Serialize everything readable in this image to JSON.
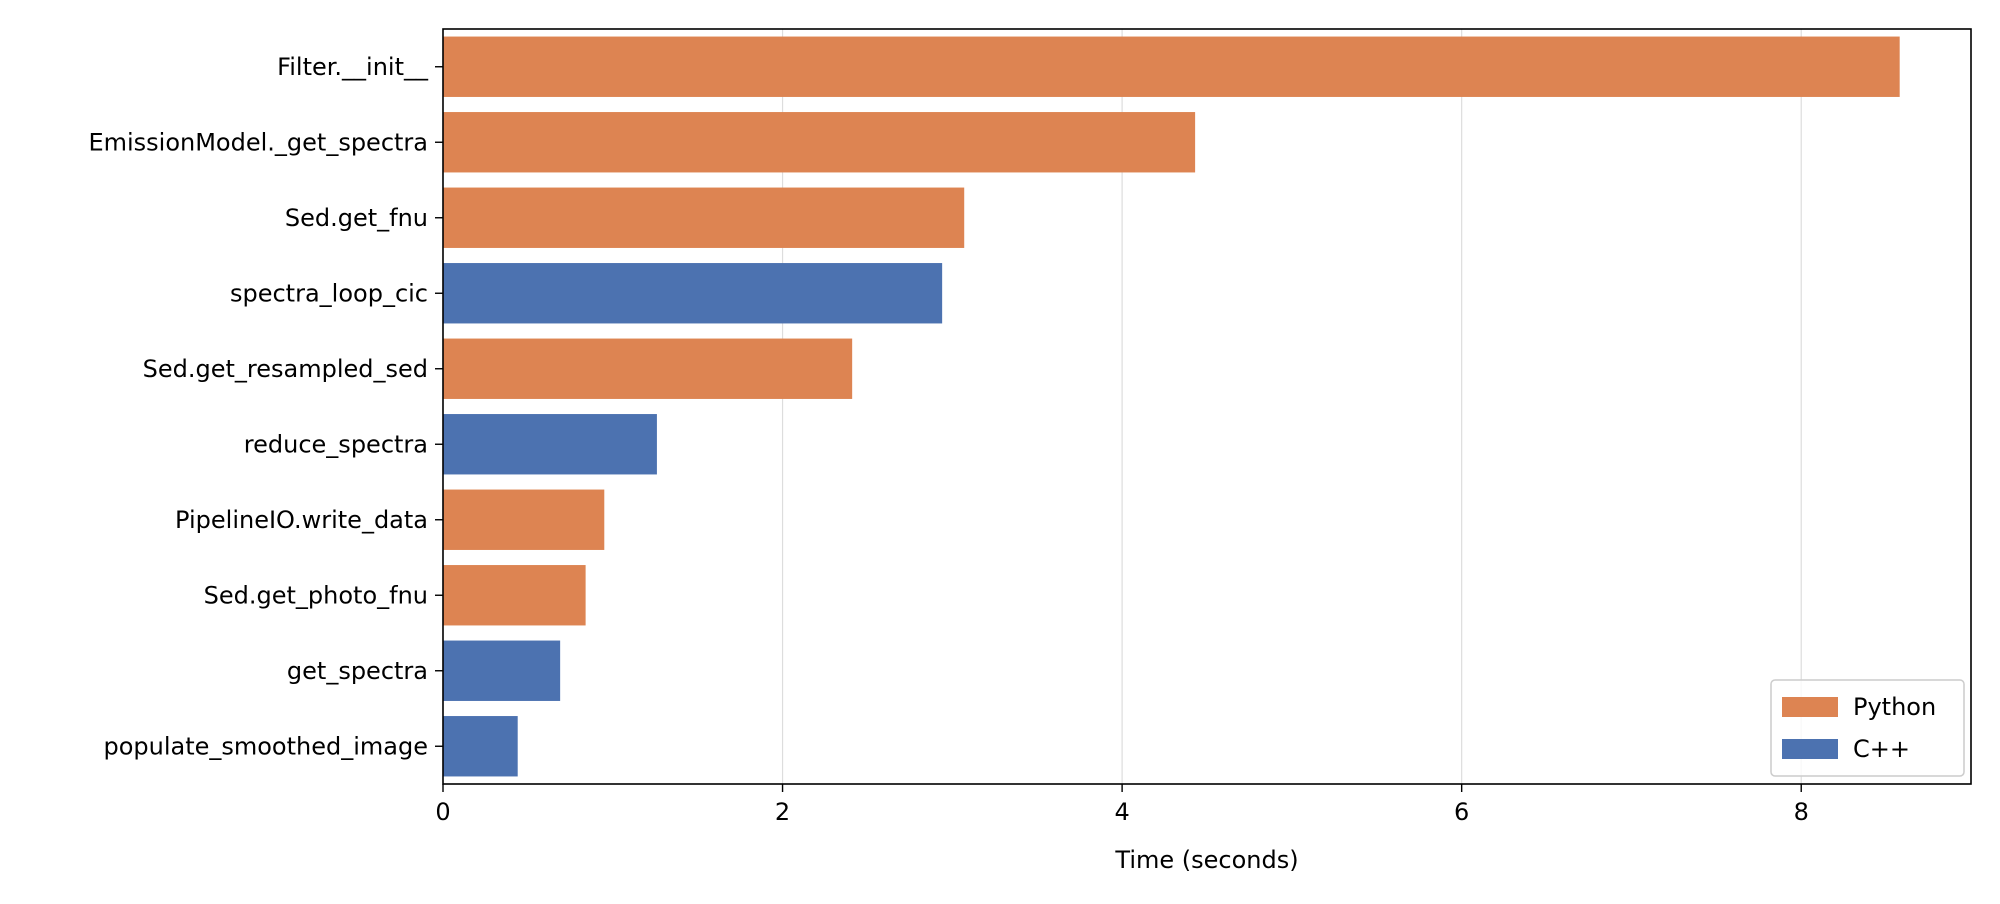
{
  "chart_data": {
    "type": "bar",
    "orientation": "horizontal",
    "title": "",
    "xlabel": "Time (seconds)",
    "ylabel": "",
    "xlim": [
      0,
      9
    ],
    "xticks": [
      0,
      2,
      4,
      6,
      8
    ],
    "grid": "vertical",
    "legend_position": "bottom-right",
    "categories": [
      "Filter.__init__",
      "EmissionModel._get_spectra",
      "Sed.get_fnu",
      "spectra_loop_cic",
      "Sed.get_resampled_sed",
      "reduce_spectra",
      "PipelineIO.write_data",
      "Sed.get_photo_fnu",
      "get_spectra",
      "populate_smoothed_image"
    ],
    "values": [
      8.58,
      4.43,
      3.07,
      2.94,
      2.41,
      1.26,
      0.95,
      0.84,
      0.69,
      0.44
    ],
    "groups": [
      "Python",
      "Python",
      "Python",
      "C++",
      "Python",
      "C++",
      "Python",
      "Python",
      "C++",
      "C++"
    ],
    "series": [
      {
        "name": "Python",
        "color": "#dd8452"
      },
      {
        "name": "C++",
        "color": "#4c72b0"
      }
    ]
  }
}
